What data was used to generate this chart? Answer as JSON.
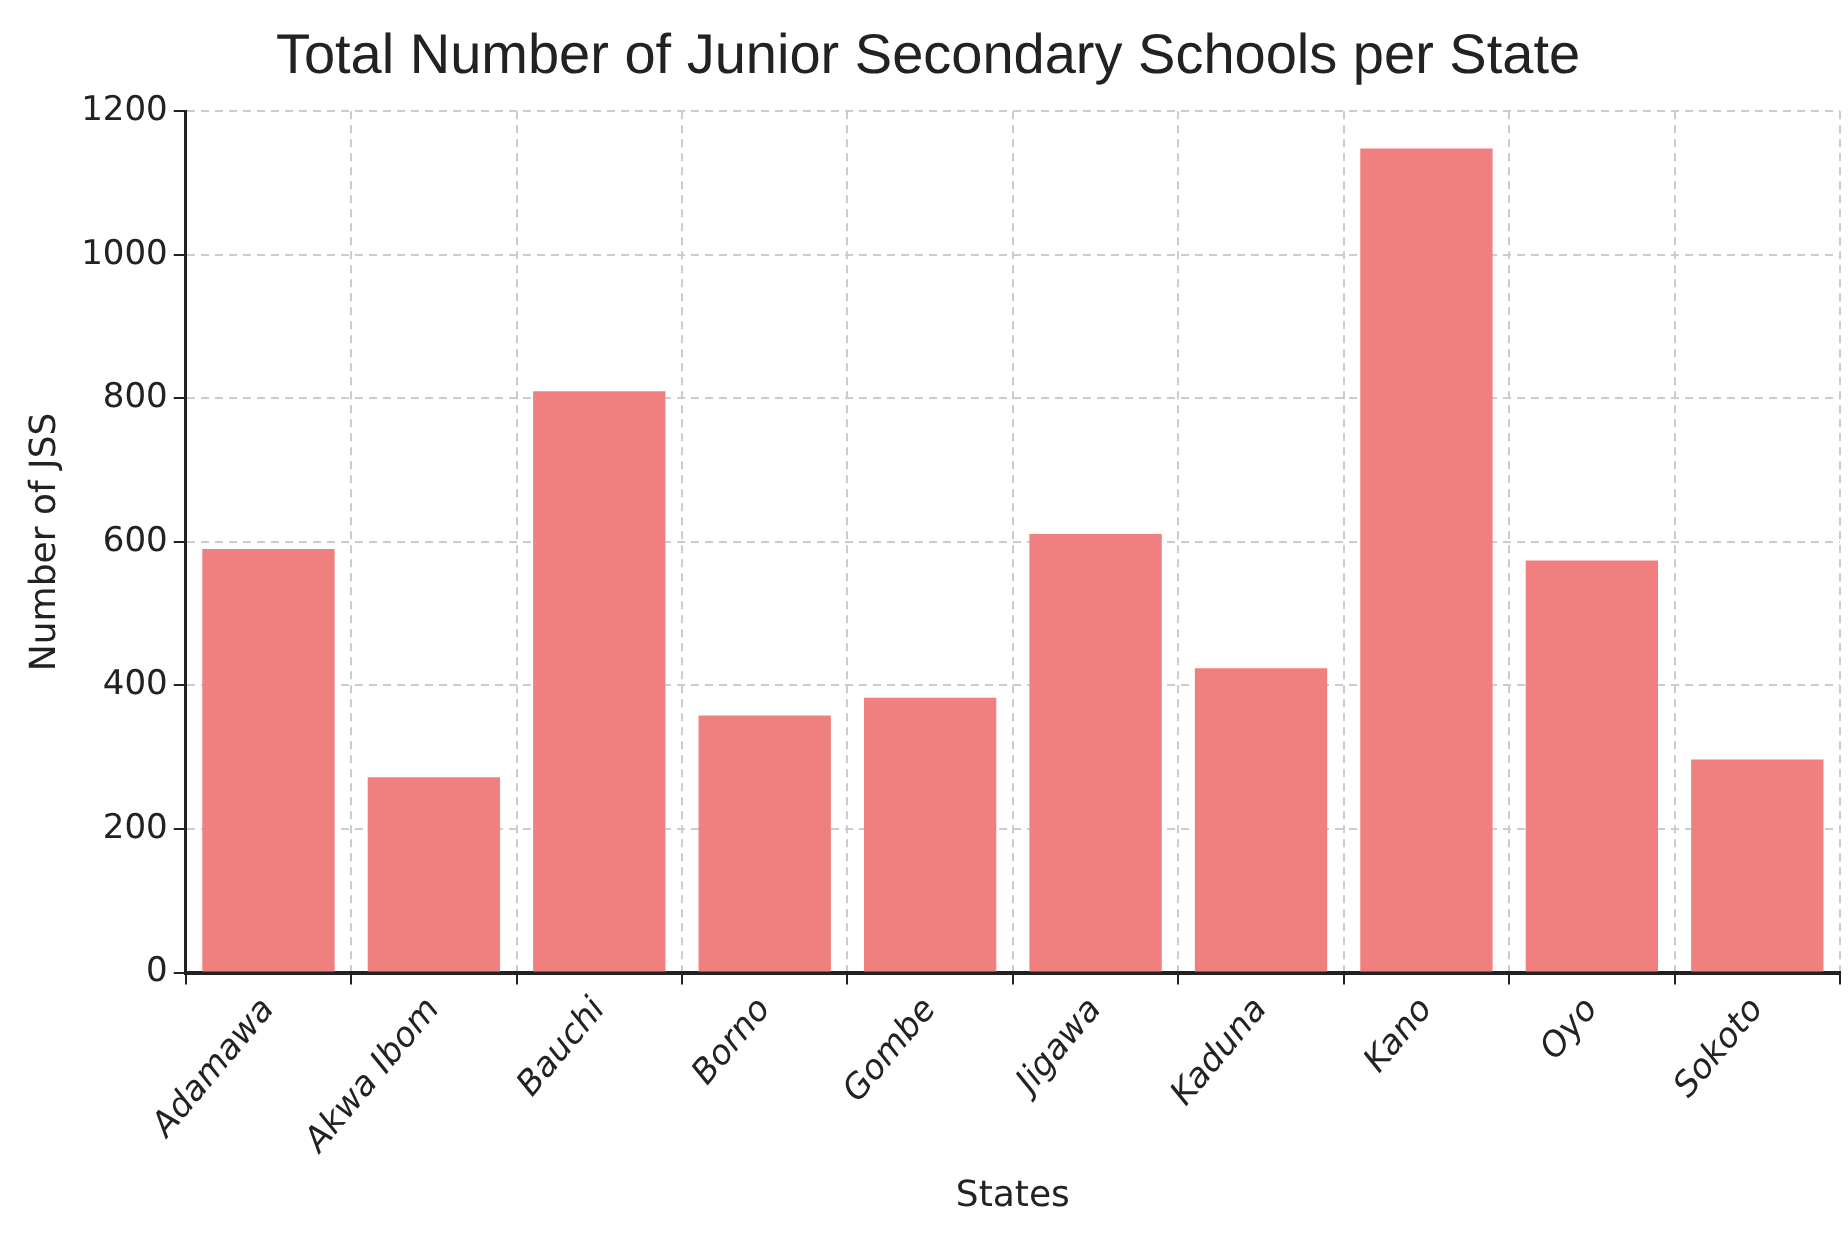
{
  "chart_data": {
    "type": "bar",
    "title": "Total Number of Junior Secondary Schools per State",
    "xlabel": "States",
    "ylabel": "Number of JSS",
    "categories": [
      "Adamawa",
      "Akwa Ibom",
      "Bauchi",
      "Borno",
      "Gombe",
      "Jigawa",
      "Kaduna",
      "Kano",
      "Oyo",
      "Sokoto"
    ],
    "values": [
      590,
      272,
      810,
      358,
      383,
      611,
      424,
      1148,
      574,
      297
    ],
    "color": "#f08080",
    "ylim": [
      0,
      1200
    ],
    "yticks": [
      0,
      200,
      400,
      600,
      800,
      1000,
      1200
    ],
    "grid": true
  }
}
